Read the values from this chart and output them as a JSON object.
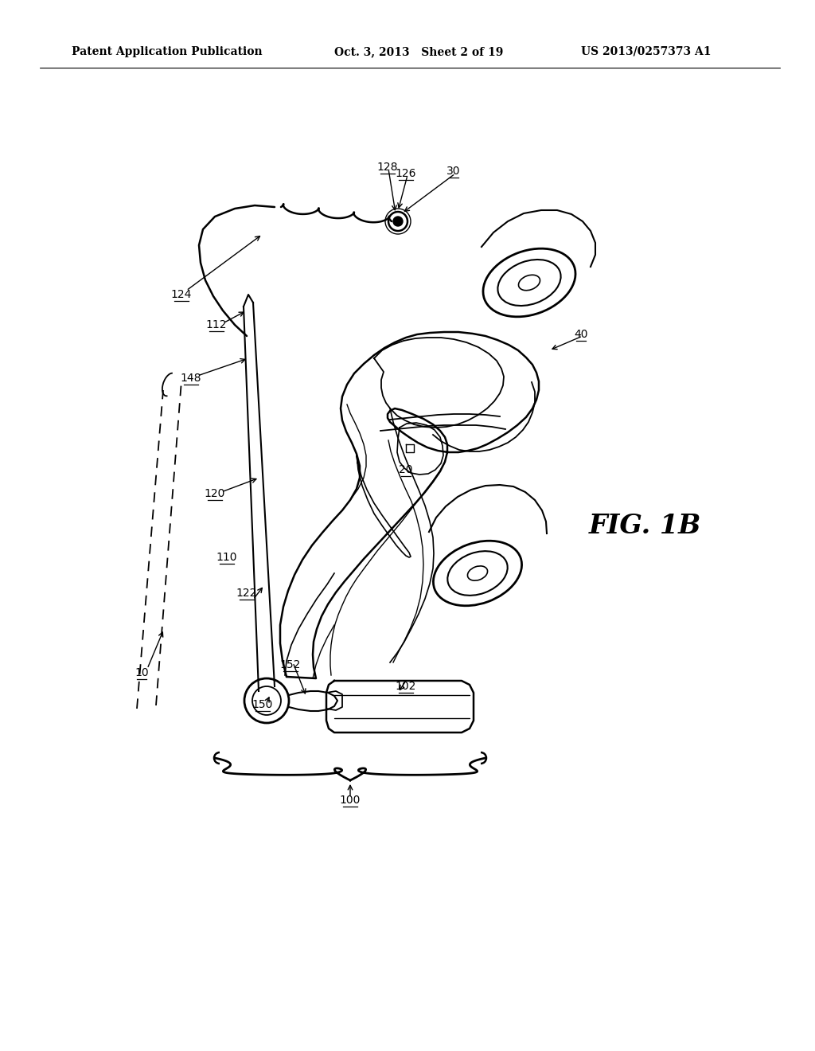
{
  "background_color": "#ffffff",
  "header_left": "Patent Application Publication",
  "header_center": "Oct. 3, 2013   Sheet 2 of 19",
  "header_right": "US 2013/0257373 A1",
  "fig_label": "FIG. 1B"
}
